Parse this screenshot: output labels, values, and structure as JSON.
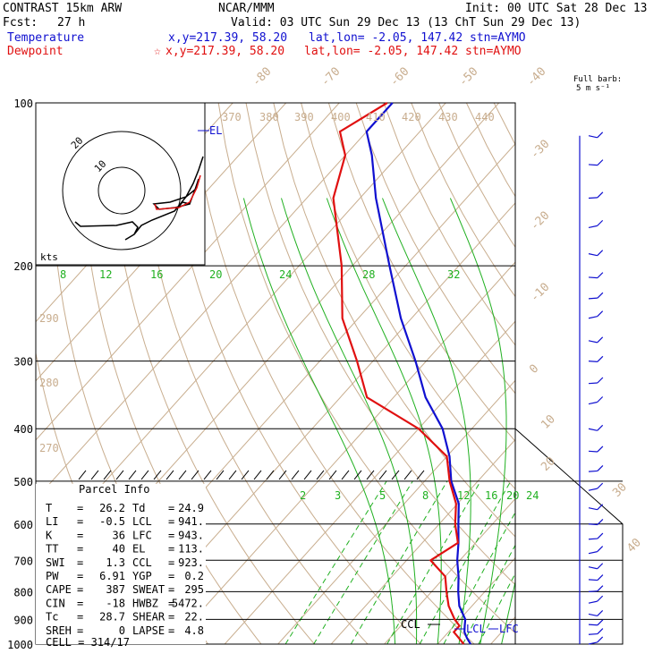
{
  "header": {
    "model": "CONTRAST 15km ARW",
    "center": "NCAR/MMM",
    "init": "Init: 00 UTC Sat 28 Dec 13",
    "fcst_label": "Fcst:",
    "fcst_value": "27 h",
    "valid": "Valid: 03 UTC Sun 29 Dec 13 (13 ChT Sun 29 Dec 13)",
    "temperature_label": "Temperature",
    "dewpoint_label": "Dewpoint",
    "temp_xy": "x,y=217.39, 58.20",
    "dew_xy": "x,y=217.39, 58.20",
    "latlon": "lat,lon= -2.05, 147.42",
    "stn": "stn=AYMO",
    "barb_scale_1": "Full barb:",
    "barb_scale_2": "5 m s⁻¹"
  },
  "parcel_info": {
    "title": "Parcel Info",
    "rows": [
      [
        "T",
        "26.2",
        "Td",
        "24.9"
      ],
      [
        "LI",
        "-0.5",
        "LCL",
        "941."
      ],
      [
        "K",
        "36",
        "LFC",
        "943."
      ],
      [
        "TT",
        "40",
        "EL",
        "113."
      ],
      [
        "SWI",
        "1.3",
        "CCL",
        "923."
      ],
      [
        "PW",
        "6.91",
        "YGP",
        "0.2"
      ],
      [
        "CAPE",
        "387",
        "SWEAT",
        "295"
      ],
      [
        "CIN",
        "-18",
        "HWBZ",
        "5472."
      ],
      [
        "Tc",
        "28.7",
        "SHEAR",
        "22."
      ],
      [
        "SREH",
        "0",
        "LAPSE",
        "4.8"
      ]
    ],
    "cell": "CELL = 314/17"
  },
  "hodograph": {
    "units": "kts",
    "ring_labels": [
      "10",
      "20"
    ]
  },
  "chart_data": {
    "type": "line",
    "title": "CONTRAST 15km ARW",
    "pressure_levels": [
      100,
      200,
      300,
      400,
      500,
      600,
      700,
      800,
      900,
      1000
    ],
    "isotherm_labels": [
      "-80",
      "-70",
      "-60",
      "-50",
      "-40",
      "-30",
      "-20",
      "-10",
      "0",
      "10",
      "20",
      "30",
      "40"
    ],
    "theta_labels": [
      "370",
      "380",
      "390",
      "400",
      "410",
      "420",
      "430",
      "440",
      "290",
      "280",
      "270"
    ],
    "mixing_ratio_labels_upper": [
      "8",
      "12",
      "16",
      "20",
      "24",
      "28",
      "32"
    ],
    "mixing_ratio_labels_lower": [
      "2",
      "3",
      "5",
      "8",
      "12",
      "16",
      "20",
      "24"
    ],
    "annotations": [
      "EL",
      "CCL",
      "LCL",
      "LFC"
    ],
    "series": [
      {
        "name": "Temperature",
        "color": "#1010d0",
        "points": [
          [
            1000,
            26.2
          ],
          [
            975,
            24.5
          ],
          [
            950,
            23.0
          ],
          [
            925,
            22.0
          ],
          [
            900,
            21.0
          ],
          [
            850,
            17.6
          ],
          [
            800,
            15.0
          ],
          [
            750,
            12.5
          ],
          [
            700,
            9.5
          ],
          [
            650,
            6.8
          ],
          [
            600,
            3.6
          ],
          [
            550,
            0.2
          ],
          [
            500,
            -5.0
          ],
          [
            450,
            -9.5
          ],
          [
            400,
            -15.5
          ],
          [
            350,
            -24.0
          ],
          [
            300,
            -32.0
          ],
          [
            250,
            -42.0
          ],
          [
            200,
            -53.0
          ],
          [
            150,
            -67.0
          ],
          [
            125,
            -75.0
          ],
          [
            113,
            -80.0
          ],
          [
            100,
            -80.0
          ]
        ]
      },
      {
        "name": "Dewpoint",
        "color": "#e01010",
        "points": [
          [
            1000,
            24.9
          ],
          [
            975,
            23.0
          ],
          [
            950,
            21.0
          ],
          [
            925,
            21.0
          ],
          [
            900,
            19.0
          ],
          [
            850,
            15.6
          ],
          [
            800,
            12.8
          ],
          [
            750,
            10.0
          ],
          [
            700,
            4.5
          ],
          [
            650,
            6.7
          ],
          [
            600,
            3.0
          ],
          [
            550,
            -0.3
          ],
          [
            500,
            -5.3
          ],
          [
            450,
            -10.0
          ],
          [
            400,
            -20.0
          ],
          [
            350,
            -35.0
          ],
          [
            300,
            -43.0
          ],
          [
            250,
            -53.0
          ],
          [
            200,
            -62.0
          ],
          [
            150,
            -75.0
          ],
          [
            125,
            -80.0
          ],
          [
            113,
            -85.0
          ],
          [
            100,
            -81.0
          ]
        ]
      }
    ],
    "wind_profile_pressure": [
      115,
      130,
      150,
      170,
      190,
      210,
      230,
      250,
      275,
      300,
      330,
      360,
      400,
      440,
      480,
      520,
      560,
      600,
      640,
      680,
      720,
      760,
      800,
      840,
      880,
      920,
      960,
      1000
    ]
  }
}
